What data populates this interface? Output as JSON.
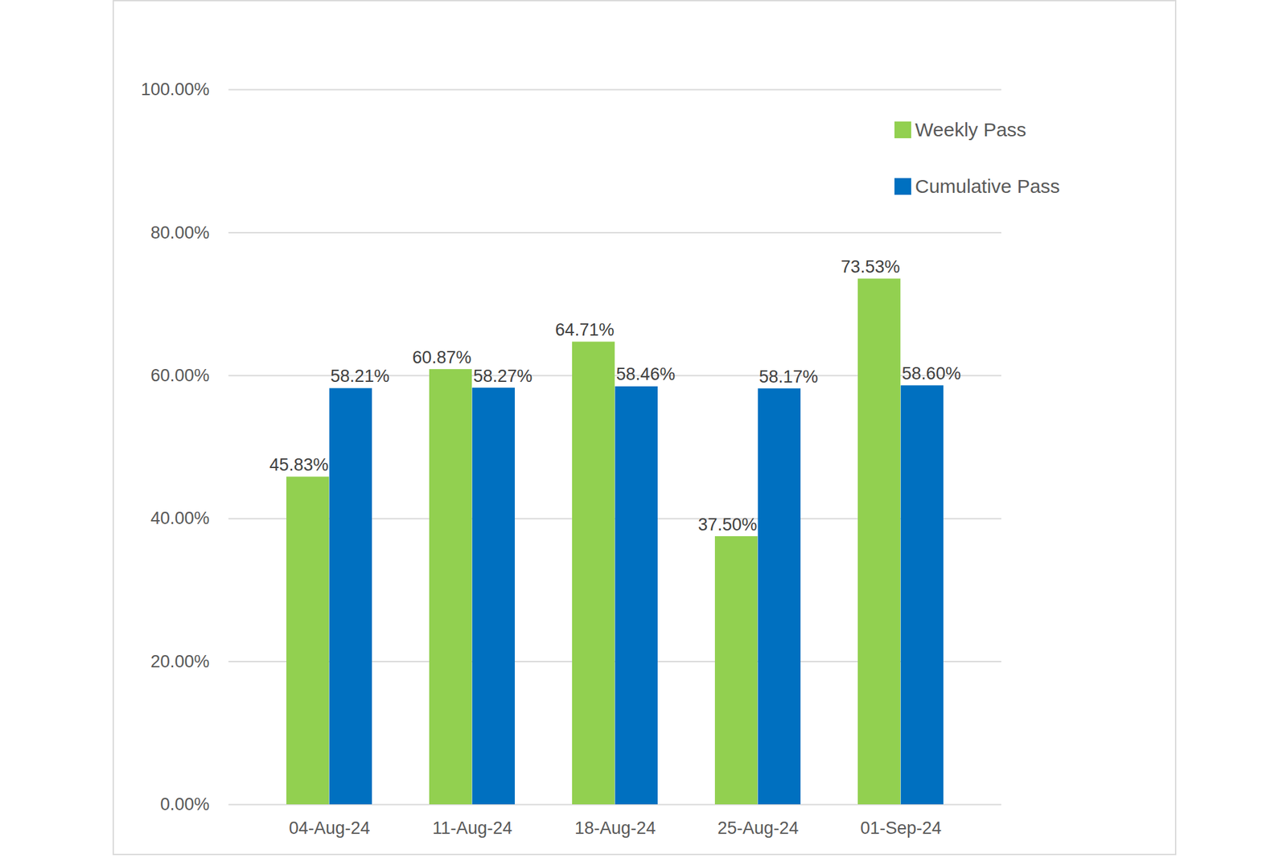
{
  "chart_data": {
    "type": "bar",
    "categories": [
      "04-Aug-24",
      "11-Aug-24",
      "18-Aug-24",
      "25-Aug-24",
      "01-Sep-24"
    ],
    "series": [
      {
        "name": "Weekly Pass",
        "color": "#92d050",
        "values": [
          45.83,
          60.87,
          64.71,
          37.5,
          73.53
        ],
        "value_labels": [
          "45.83%",
          "60.87%",
          "64.71%",
          "37.50%",
          "73.53%"
        ]
      },
      {
        "name": "Cumulative Pass",
        "color": "#0070c0",
        "values": [
          58.21,
          58.27,
          58.46,
          58.17,
          58.6
        ],
        "value_labels": [
          "58.21%",
          "58.27%",
          "58.46%",
          "58.17%",
          "58.60%"
        ]
      }
    ],
    "ylim": [
      0,
      100
    ],
    "yticks": [
      {
        "value": 0,
        "label": "0.00%"
      },
      {
        "value": 20,
        "label": "20.00%"
      },
      {
        "value": 40,
        "label": "40.00%"
      },
      {
        "value": 60,
        "label": "60.00%"
      },
      {
        "value": 80,
        "label": "80.00%"
      },
      {
        "value": 100,
        "label": "100.00%"
      }
    ],
    "grid": true,
    "legend": "top-right",
    "data_labels": true
  }
}
